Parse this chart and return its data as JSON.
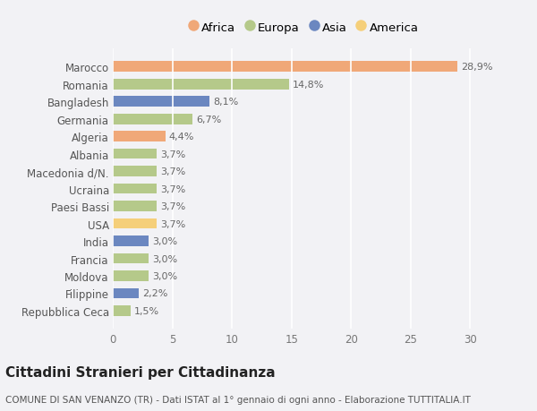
{
  "categories": [
    "Repubblica Ceca",
    "Filippine",
    "Moldova",
    "Francia",
    "India",
    "USA",
    "Paesi Bassi",
    "Ucraina",
    "Macedonia d/N.",
    "Albania",
    "Algeria",
    "Germania",
    "Bangladesh",
    "Romania",
    "Marocco"
  ],
  "values": [
    1.5,
    2.2,
    3.0,
    3.0,
    3.0,
    3.7,
    3.7,
    3.7,
    3.7,
    3.7,
    4.4,
    6.7,
    8.1,
    14.8,
    28.9
  ],
  "labels": [
    "1,5%",
    "2,2%",
    "3,0%",
    "3,0%",
    "3,0%",
    "3,7%",
    "3,7%",
    "3,7%",
    "3,7%",
    "3,7%",
    "4,4%",
    "6,7%",
    "8,1%",
    "14,8%",
    "28,9%"
  ],
  "colors": [
    "#b5c98a",
    "#6b87c0",
    "#b5c98a",
    "#b5c98a",
    "#6b87c0",
    "#f5cf7a",
    "#b5c98a",
    "#b5c98a",
    "#b5c98a",
    "#b5c98a",
    "#f0a878",
    "#b5c98a",
    "#6b87c0",
    "#b5c98a",
    "#f0a878"
  ],
  "legend_labels": [
    "Africa",
    "Europa",
    "Asia",
    "America"
  ],
  "legend_colors": [
    "#f0a878",
    "#b5c98a",
    "#6b87c0",
    "#f5cf7a"
  ],
  "title": "Cittadini Stranieri per Cittadinanza",
  "subtitle": "COMUNE DI SAN VENANZO (TR) - Dati ISTAT al 1° gennaio di ogni anno - Elaborazione TUTTITALIA.IT",
  "xlim": [
    0,
    32
  ],
  "xticks": [
    0,
    5,
    10,
    15,
    20,
    25,
    30
  ],
  "background_color": "#f2f2f5",
  "plot_bg_color": "#f2f2f5",
  "grid_color": "#ffffff",
  "bar_height": 0.6,
  "title_fontsize": 11,
  "subtitle_fontsize": 7.5,
  "label_fontsize": 8,
  "tick_fontsize": 8.5,
  "legend_fontsize": 9.5
}
